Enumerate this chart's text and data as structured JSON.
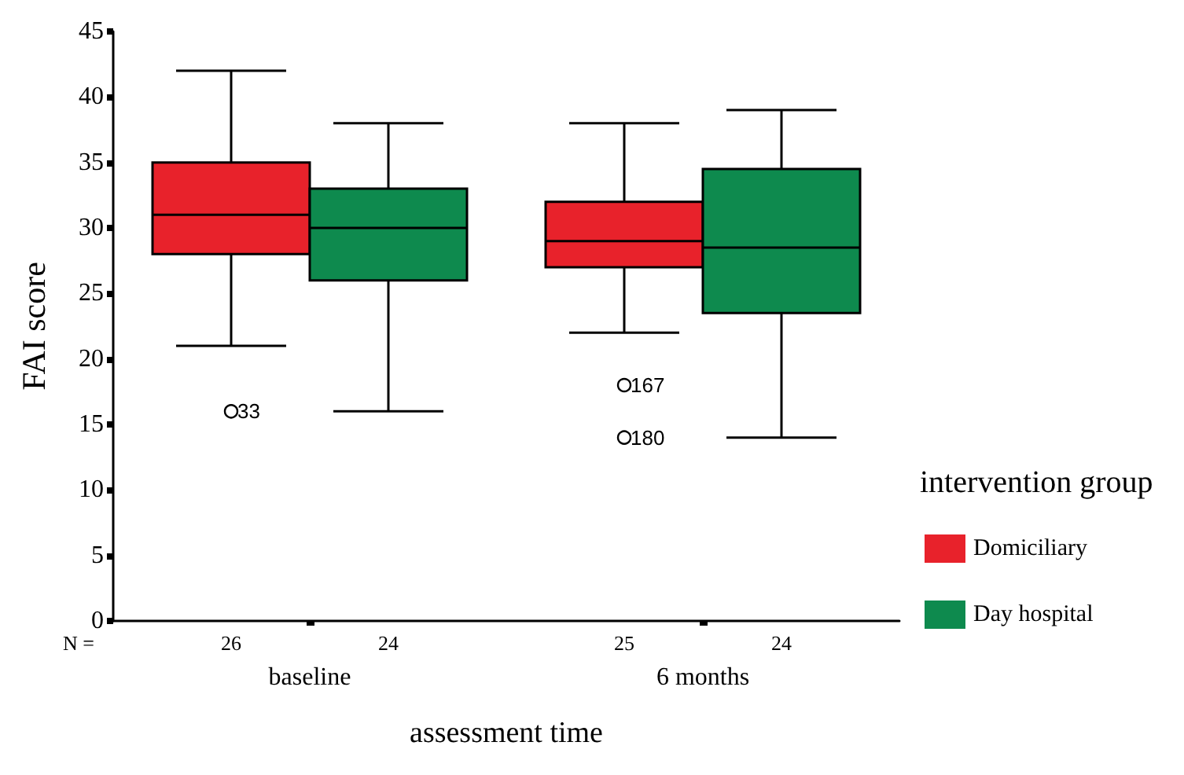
{
  "chart_data": {
    "type": "box",
    "xlabel": "assessment time",
    "ylabel": "FAI score",
    "legend_title": "intervention group",
    "legend": "right",
    "categories": [
      "baseline",
      "6 months"
    ],
    "ylim": [
      0,
      45
    ],
    "yticks": [
      0,
      5,
      10,
      15,
      20,
      25,
      30,
      35,
      40,
      45
    ],
    "series": [
      {
        "name": "Domiciliary",
        "color": "#e8222b",
        "boxes": [
          {
            "low": 21,
            "q1": 28,
            "median": 31,
            "q3": 35,
            "high": 42,
            "outliers": [
              16
            ]
          },
          {
            "low": 22,
            "q1": 27,
            "median": 29,
            "q3": 32,
            "high": 38,
            "outliers": [
              18,
              14
            ]
          }
        ]
      },
      {
        "name": "Day hospital",
        "color": "#0e8a4e",
        "boxes": [
          {
            "low": 16,
            "q1": 26,
            "median": 30,
            "q3": 33,
            "high": 38
          },
          {
            "low": 14,
            "q1": 23.5,
            "median": 28.5,
            "q3": 34.5,
            "high": 39
          }
        ]
      }
    ],
    "annotations": [
      "N =",
      "26",
      "24",
      "25",
      "24",
      "33",
      "167",
      "180"
    ]
  }
}
